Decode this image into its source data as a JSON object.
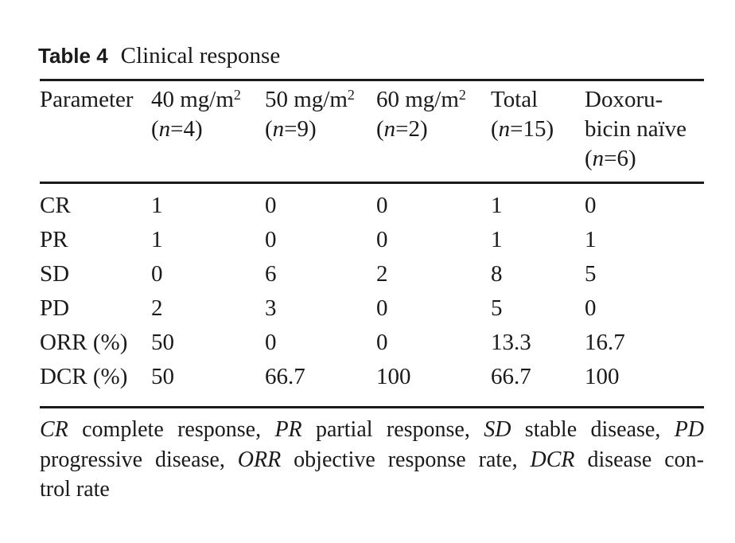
{
  "caption": {
    "label": "Table 4",
    "title": "Clinical response"
  },
  "table": {
    "columns": [
      {
        "lines": [
          [
            {
              "t": "Parameter"
            }
          ]
        ]
      },
      {
        "lines": [
          [
            {
              "t": "40 mg/m"
            },
            {
              "t": "2",
              "s": "sup"
            }
          ],
          [
            {
              "t": "("
            },
            {
              "t": "n",
              "s": "i"
            },
            {
              "t": "=4)"
            }
          ]
        ]
      },
      {
        "lines": [
          [
            {
              "t": "50 mg/m"
            },
            {
              "t": "2",
              "s": "sup"
            }
          ],
          [
            {
              "t": "("
            },
            {
              "t": "n",
              "s": "i"
            },
            {
              "t": "=9)"
            }
          ]
        ]
      },
      {
        "lines": [
          [
            {
              "t": "60 mg/m"
            },
            {
              "t": "2",
              "s": "sup"
            }
          ],
          [
            {
              "t": "("
            },
            {
              "t": "n",
              "s": "i"
            },
            {
              "t": "=2)"
            }
          ]
        ]
      },
      {
        "lines": [
          [
            {
              "t": "Total"
            }
          ],
          [
            {
              "t": "("
            },
            {
              "t": "n",
              "s": "i"
            },
            {
              "t": "=15)"
            }
          ]
        ]
      },
      {
        "lines": [
          [
            {
              "t": "Doxoru-"
            }
          ],
          [
            {
              "t": "bicin naïve"
            }
          ],
          [
            {
              "t": "("
            },
            {
              "t": "n",
              "s": "i"
            },
            {
              "t": "=6)"
            }
          ]
        ]
      }
    ],
    "rows": [
      {
        "label": "CR",
        "values": [
          "1",
          "0",
          "0",
          "1",
          "0"
        ]
      },
      {
        "label": "PR",
        "values": [
          "1",
          "0",
          "0",
          "1",
          "1"
        ]
      },
      {
        "label": "SD",
        "values": [
          "0",
          "6",
          "2",
          "8",
          "5"
        ]
      },
      {
        "label": "PD",
        "values": [
          "2",
          "3",
          "0",
          "5",
          "0"
        ]
      },
      {
        "label": "ORR (%)",
        "values": [
          "50",
          "0",
          "0",
          "13.3",
          "16.7"
        ]
      },
      {
        "label": "DCR (%)",
        "values": [
          "50",
          "66.7",
          "100",
          "66.7",
          "100"
        ]
      }
    ]
  },
  "footnote": {
    "lines": [
      {
        "justify": true,
        "runs": [
          {
            "t": "CR",
            "s": "i"
          },
          {
            "t": " complete response, "
          },
          {
            "t": "PR",
            "s": "i"
          },
          {
            "t": " partial response, "
          },
          {
            "t": "SD",
            "s": "i"
          },
          {
            "t": " stable disease, "
          },
          {
            "t": "PD",
            "s": "i"
          }
        ]
      },
      {
        "justify": true,
        "runs": [
          {
            "t": "progressive disease, "
          },
          {
            "t": "ORR",
            "s": "i"
          },
          {
            "t": " objective response rate, "
          },
          {
            "t": "DCR",
            "s": "i"
          },
          {
            "t": " disease con-"
          }
        ]
      },
      {
        "justify": false,
        "runs": [
          {
            "t": "trol rate"
          }
        ]
      }
    ]
  },
  "colors": {
    "text": "#1a1a1a",
    "rule": "#1b1b1b",
    "background": "#ffffff"
  }
}
